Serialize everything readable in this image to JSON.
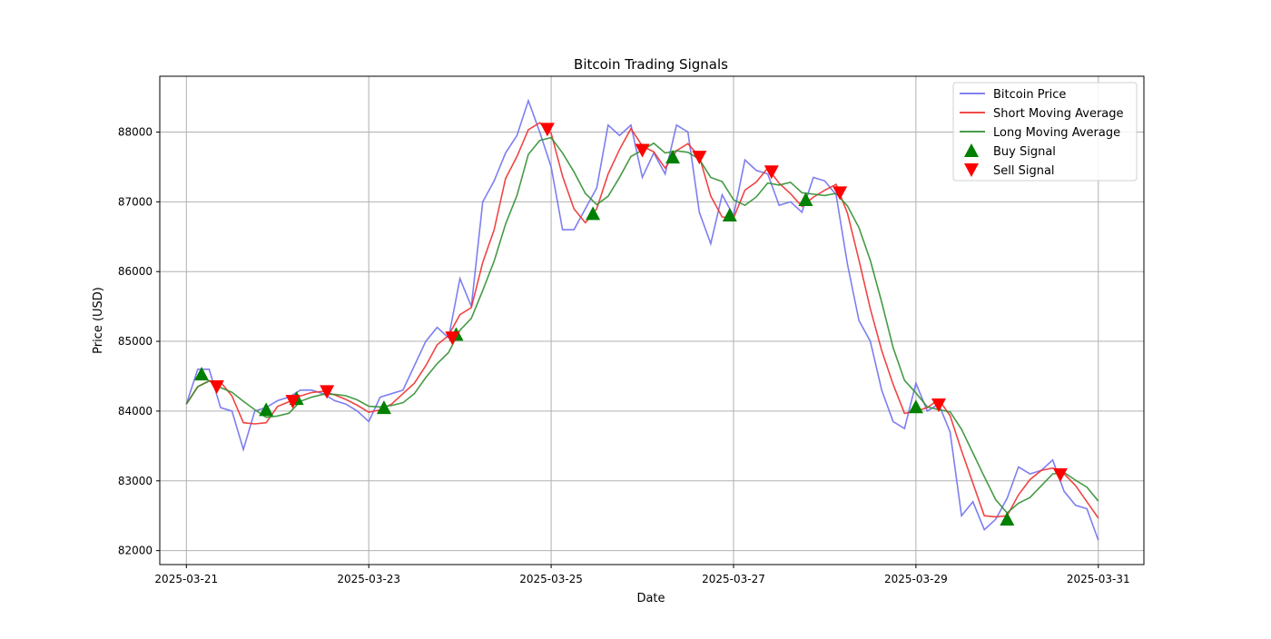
{
  "chart_data": {
    "type": "line",
    "title": "Bitcoin Trading Signals",
    "xlabel": "Date",
    "ylabel": "Price (USD)",
    "xlim": [
      "2025-03-20 17:00",
      "2025-03-31 12:00"
    ],
    "ylim": [
      81800,
      88800
    ],
    "x_ticks": [
      "2025-03-21",
      "2025-03-23",
      "2025-03-25",
      "2025-03-27",
      "2025-03-29",
      "2025-03-31"
    ],
    "y_ticks": [
      82000,
      83000,
      84000,
      85000,
      86000,
      87000,
      88000
    ],
    "grid": true,
    "legend_position": "top-right",
    "legend": [
      "Bitcoin Price",
      "Short Moving Average",
      "Long Moving Average",
      "Buy Signal",
      "Sell Signal"
    ],
    "colors": {
      "price": "#7070f0",
      "short_ma": "#f03030",
      "long_ma": "#309030",
      "buy": "#008000",
      "sell": "#ff0000"
    },
    "price_start": "2025-03-21 00:00",
    "price_interval_hours": 3,
    "price": [
      84100,
      84600,
      84600,
      84050,
      84000,
      83450,
      84000,
      84050,
      84150,
      84200,
      84300,
      84300,
      84250,
      84150,
      84100,
      84000,
      83850,
      84200,
      84250,
      84300,
      84650,
      85000,
      85200,
      85050,
      85900,
      85500,
      87000,
      87300,
      87700,
      87950,
      88450,
      88000,
      87500,
      86600,
      86600,
      86900,
      87200,
      88100,
      87950,
      88100,
      87350,
      87700,
      87400,
      88100,
      88000,
      86850,
      86400,
      87100,
      86800,
      87600,
      87450,
      87400,
      86950,
      87000,
      86850,
      87350,
      87300,
      87100,
      86100,
      85300,
      85000,
      84300,
      83850,
      83750,
      84400,
      84000,
      84100,
      83700,
      82500,
      82700,
      82300,
      82450,
      82750,
      83200,
      83100,
      83150,
      83300,
      82850,
      82650,
      82600,
      82150
    ],
    "buy_signals": [
      [
        "2025-03-21 04:00",
        84530
      ],
      [
        "2025-03-21 21:00",
        84020
      ],
      [
        "2025-03-22 05:00",
        84180
      ],
      [
        "2025-03-23 04:00",
        84050
      ],
      [
        "2025-03-23 23:00",
        85100
      ],
      [
        "2025-03-25 11:00",
        86830
      ],
      [
        "2025-03-26 08:00",
        87640
      ],
      [
        "2025-03-26 23:00",
        86810
      ],
      [
        "2025-03-27 19:00",
        87030
      ],
      [
        "2025-03-29 00:00",
        84060
      ],
      [
        "2025-03-30 00:00",
        82450
      ]
    ],
    "sell_signals": [
      [
        "2025-03-21 08:00",
        84350
      ],
      [
        "2025-03-22 04:00",
        84140
      ],
      [
        "2025-03-22 13:00",
        84280
      ],
      [
        "2025-03-23 22:00",
        85050
      ],
      [
        "2025-03-24 23:00",
        88040
      ],
      [
        "2025-03-26 00:00",
        87740
      ],
      [
        "2025-03-26 15:00",
        87640
      ],
      [
        "2025-03-27 10:00",
        87430
      ],
      [
        "2025-03-28 04:00",
        87130
      ],
      [
        "2025-03-29 06:00",
        84090
      ],
      [
        "2025-03-30 14:00",
        83090
      ]
    ]
  }
}
